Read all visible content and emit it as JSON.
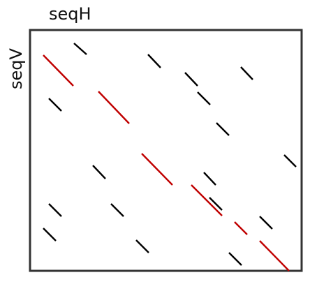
{
  "labels": {
    "horizontal_axis": "seqH",
    "vertical_axis": "seqV"
  },
  "colors": {
    "frame": "#333333",
    "match_segment": "#000000",
    "highlighted_path": "#c00000",
    "background": "#ffffff"
  }
}
